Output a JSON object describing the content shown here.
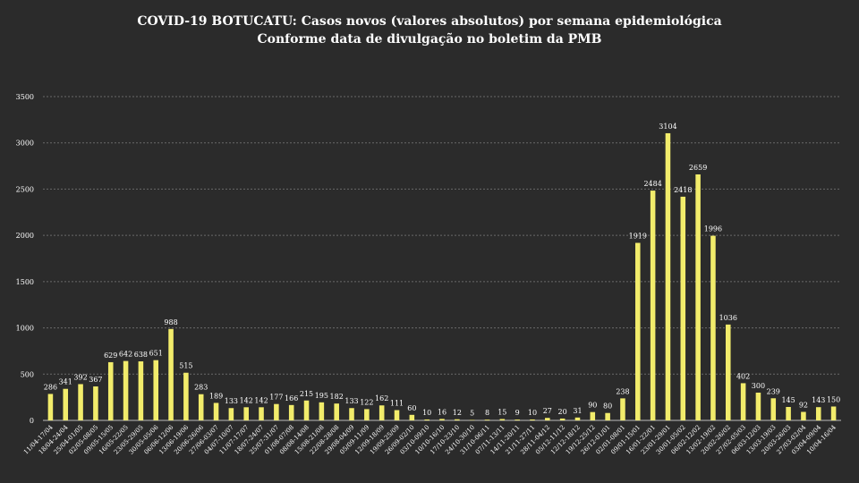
{
  "chart_data": {
    "type": "bar",
    "title": "COVID-19 BOTUCATU: Casos novos (valores absolutos) por semana epidemiológica",
    "subtitle": "Conforme data de divulgação no boletim da PMB",
    "xlabel": "",
    "ylabel": "",
    "ylim": [
      0,
      3500
    ],
    "yticks": [
      0,
      500,
      1000,
      1500,
      2000,
      2500,
      3000,
      3500
    ],
    "grid": true,
    "categories": [
      "11/04-17/04",
      "18/04-24/04",
      "25/04-01/05",
      "02/05-08/05",
      "09/05-15/05",
      "16/05-22/05",
      "23/05-29/05",
      "30/05-05/06",
      "06/06-12/06",
      "13/06-19/06",
      "20/06-26/06",
      "27/06-03/07",
      "04/07-10/07",
      "11/07-17/07",
      "18/07-24/07",
      "25/07-31/07",
      "01/08-07/08",
      "08/08-14/08",
      "15/08-21/08",
      "22/08-28/08",
      "29/08-04/09",
      "05/09-11/09",
      "12/09-18/09",
      "19/09-25/09",
      "26/09-02/10",
      "03/10-09/10",
      "10/10-16/10",
      "17/10-23/10",
      "24/10-30/10",
      "31/10-06/11",
      "07/11-13/11",
      "14/11-20/11",
      "21/11-27/11",
      "28/11-04/12",
      "05/12-11/12",
      "12/12-18/12",
      "19/12-25/12",
      "26/12-01/01",
      "02/01-08/01",
      "09/01-15/01",
      "16/01-22/01",
      "23/01-29/01",
      "30/01-05/02",
      "06/02-12/02",
      "13/02-19/02",
      "20/02-26/02",
      "27/02-05/03",
      "06/03-12/03",
      "13/03-19/03",
      "20/03-26/03",
      "27/03-02/04",
      "03/04-09/04",
      "10/04-16/04"
    ],
    "values": [
      286,
      341,
      392,
      367,
      629,
      642,
      638,
      651,
      988,
      515,
      283,
      189,
      133,
      142,
      142,
      177,
      166,
      215,
      195,
      182,
      133,
      122,
      162,
      111,
      60,
      10,
      16,
      12,
      5,
      8,
      15,
      9,
      10,
      27,
      20,
      31,
      90,
      80,
      238,
      1919,
      2484,
      3104,
      2418,
      2659,
      1996,
      1036,
      402,
      300,
      239,
      145,
      92,
      143,
      150
    ],
    "colors": {
      "bar": "#f2ec6b",
      "background": "#2b2b2b",
      "text": "#ffffff",
      "grid": "#6a6a6a"
    }
  }
}
